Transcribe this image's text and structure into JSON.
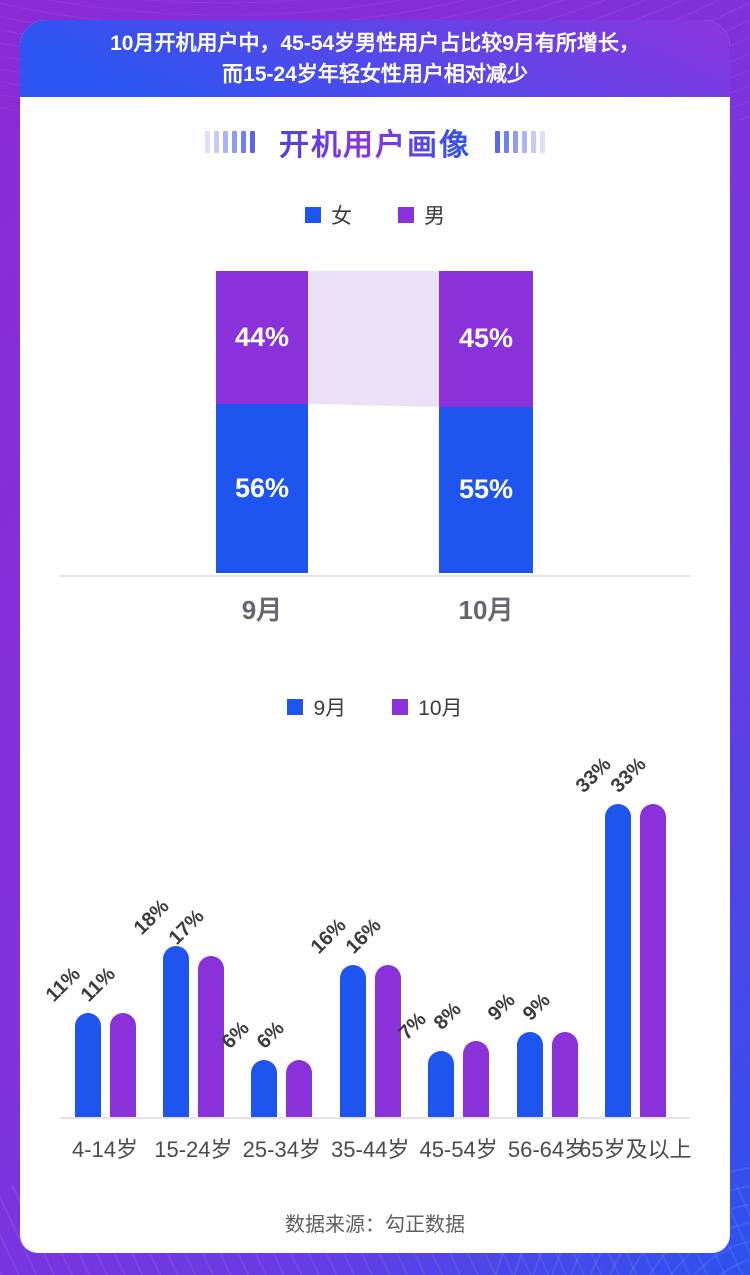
{
  "banner": {
    "line1": "10月开机用户中，45-54岁男性用户占比较9月有所增长，",
    "line2": "而15-24岁年轻女性用户相对减少"
  },
  "title": "开机用户画像",
  "footer": "数据来源：勾正数据",
  "colors": {
    "blue": "#1E55EF",
    "purple": "#8A31DA",
    "band": "#EAE1F7",
    "banner_gradient_start": "#8C36DE",
    "banner_gradient_end": "#2C55F1",
    "deco": [
      "#DDE0FA",
      "#C5CBF7",
      "#ABB3F4",
      "#8F9BF1",
      "#7180EE",
      "#5766EB"
    ]
  },
  "chart_data": [
    {
      "type": "bar",
      "variant": "stacked-column",
      "categories": [
        "9月",
        "10月"
      ],
      "series": [
        {
          "name": "女",
          "color": "#1E55EF",
          "values": [
            56,
            55
          ]
        },
        {
          "name": "男",
          "color": "#8A31DA",
          "values": [
            44,
            45
          ]
        }
      ],
      "unit": "%",
      "ylim": [
        0,
        100
      ],
      "grid": false,
      "legend_position": "top",
      "value_labels": "inside-white-bold",
      "connector_band": {
        "between": [
          "9月",
          "10月"
        ],
        "series": "男",
        "color": "#EAE1F7"
      }
    },
    {
      "type": "bar",
      "variant": "grouped-column-rounded-top",
      "categories": [
        "4-14岁",
        "15-24岁",
        "25-34岁",
        "35-44岁",
        "45-54岁",
        "56-64岁",
        "65岁及以上"
      ],
      "series": [
        {
          "name": "9月",
          "color": "#1E55EF",
          "values": [
            11,
            18,
            6,
            16,
            7,
            9,
            33
          ]
        },
        {
          "name": "10月",
          "color": "#8A31DA",
          "values": [
            11,
            17,
            6,
            16,
            8,
            9,
            33
          ]
        }
      ],
      "unit": "%",
      "grid": false,
      "legend_position": "top",
      "value_labels": "above-rotated-45deg"
    }
  ]
}
